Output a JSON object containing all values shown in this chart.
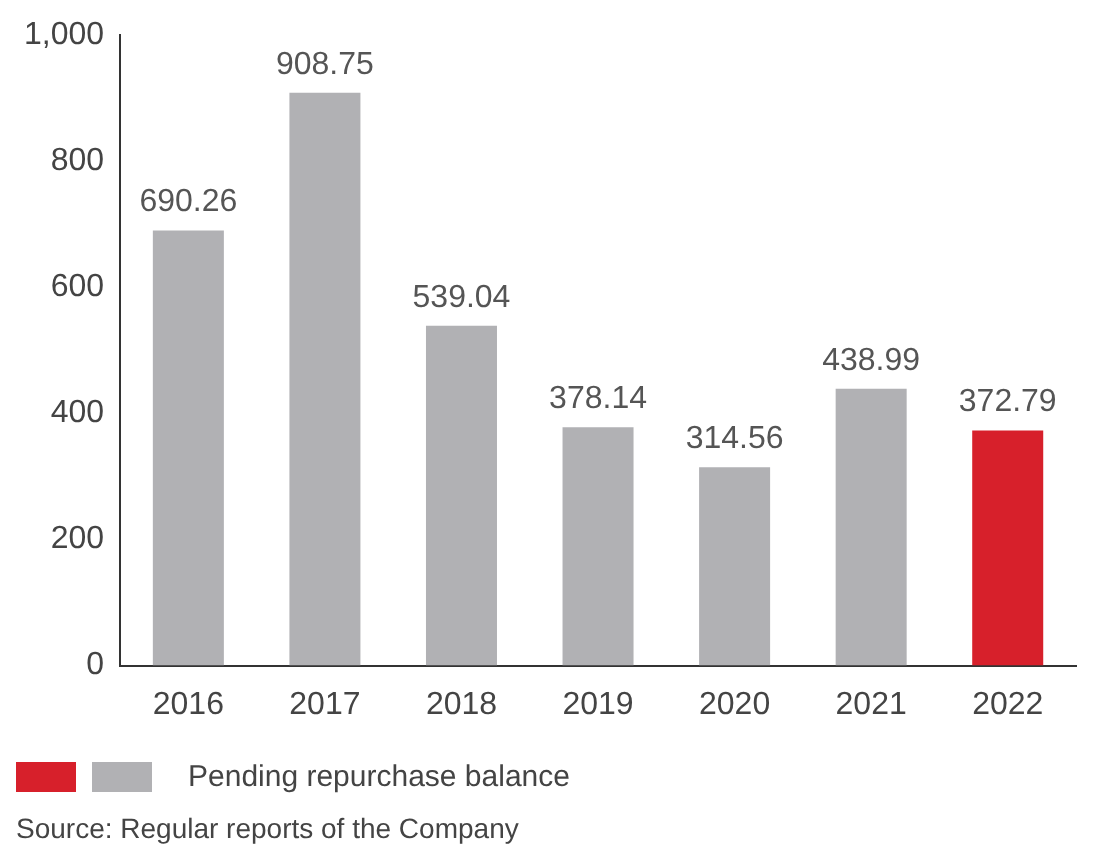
{
  "chart_data": {
    "type": "bar",
    "categories": [
      "2016",
      "2017",
      "2018",
      "2019",
      "2020",
      "2021",
      "2022"
    ],
    "series": [
      {
        "name": "Pending repurchase balance",
        "values": [
          690.26,
          908.75,
          539.04,
          378.14,
          314.56,
          438.99,
          372.79
        ],
        "colors": [
          "#b1b1b4",
          "#b1b1b4",
          "#b1b1b4",
          "#b1b1b4",
          "#b1b1b4",
          "#b1b1b4",
          "#d7202b"
        ]
      }
    ],
    "ylim": [
      0,
      1000
    ],
    "yticks": [
      0,
      200,
      400,
      600,
      800,
      {
        "value": 1000,
        "label": "1,000"
      }
    ],
    "grid": false,
    "data_labels": true,
    "legend": "bottom left",
    "annotations": [
      "Source: Regular reports of the Company"
    ]
  }
}
